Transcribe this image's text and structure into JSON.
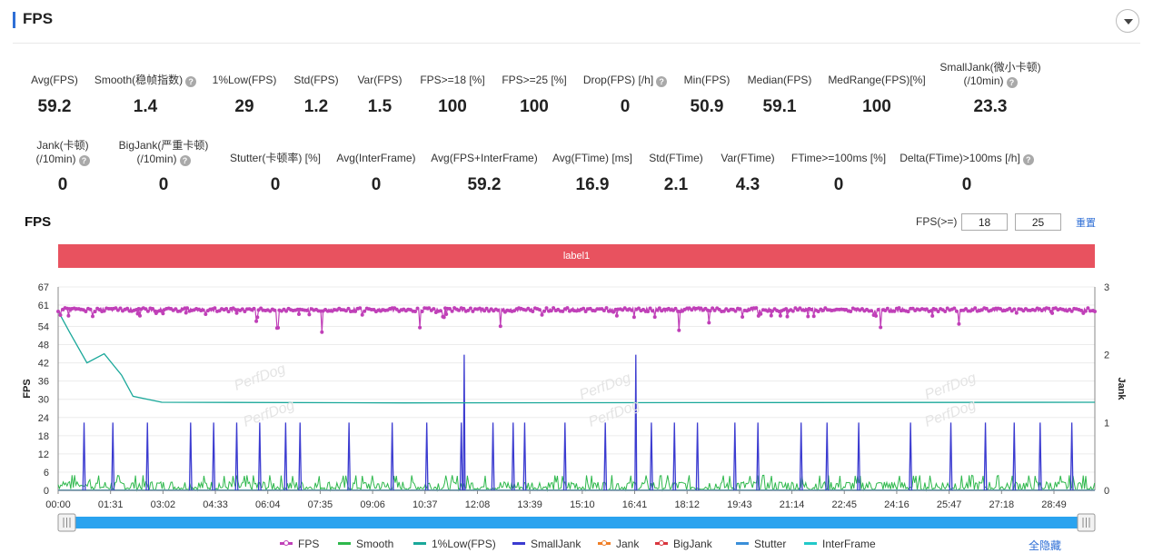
{
  "panel": {
    "title": "FPS"
  },
  "metrics_row1": [
    {
      "label": "Avg(FPS)",
      "value": "59.2",
      "help": false
    },
    {
      "label": "Smooth(稳帧指数)",
      "value": "1.4",
      "help": true
    },
    {
      "label": "1%Low(FPS)",
      "value": "29",
      "help": false
    },
    {
      "label": "Std(FPS)",
      "value": "1.2",
      "help": false
    },
    {
      "label": "Var(FPS)",
      "value": "1.5",
      "help": false
    },
    {
      "label": "FPS>=18 [%]",
      "value": "100",
      "help": false
    },
    {
      "label": "FPS>=25 [%]",
      "value": "100",
      "help": false
    },
    {
      "label": "Drop(FPS) [/h]",
      "value": "0",
      "help": true
    },
    {
      "label": "Min(FPS)",
      "value": "50.9",
      "help": false
    },
    {
      "label": "Median(FPS)",
      "value": "59.1",
      "help": false
    },
    {
      "label": "MedRange(FPS)[%]",
      "value": "100",
      "help": false
    },
    {
      "label": "SmallJank(微小卡顿)",
      "label2": "(/10min)",
      "value": "23.3",
      "help": true
    }
  ],
  "metrics_row2": [
    {
      "label": "Jank(卡顿)",
      "label2": "(/10min)",
      "value": "0",
      "help": true
    },
    {
      "label": "BigJank(严重卡顿)",
      "label2": "(/10min)",
      "value": "0",
      "help": true
    },
    {
      "label": "Stutter(卡顿率) [%]",
      "value": "0",
      "help": false
    },
    {
      "label": "Avg(InterFrame)",
      "value": "0",
      "help": false
    },
    {
      "label": "Avg(FPS+InterFrame)",
      "value": "59.2",
      "help": false
    },
    {
      "label": "Avg(FTime) [ms]",
      "value": "16.9",
      "help": false
    },
    {
      "label": "Std(FTime)",
      "value": "2.1",
      "help": false
    },
    {
      "label": "Var(FTime)",
      "value": "4.3",
      "help": false
    },
    {
      "label": "FTime>=100ms [%]",
      "value": "0",
      "help": false
    },
    {
      "label": "Delta(FTime)>100ms [/h]",
      "value": "0",
      "help": true
    }
  ],
  "chart_controls": {
    "title": "FPS",
    "threshold_label": "FPS(>=)",
    "threshold_1": "18",
    "threshold_2": "25",
    "reset_label": "重置",
    "segment_label": "label1",
    "hide_all_label": "全隐藏"
  },
  "watermark": "PerfDog",
  "colors": {
    "accent": "#2f6fd6",
    "label_bar": "#e8525f",
    "fps": "#c040b8",
    "smooth": "#2eb84c",
    "low1": "#1aa89a",
    "smalljank": "#3b3bd0",
    "jank": "#f07e26",
    "bigjank": "#d9363e",
    "stutter": "#3a8fd9",
    "interframe": "#22c8c8",
    "slider": "#2aa3ef"
  },
  "chart_data": {
    "type": "line",
    "title": "",
    "ylabel": "FPS",
    "y2label": "Jank",
    "ylim": [
      0,
      67
    ],
    "y2lim": [
      0,
      3
    ],
    "yticks": [
      0,
      6,
      12,
      18,
      24,
      30,
      36,
      42,
      48,
      54,
      61,
      67
    ],
    "y2ticks": [
      0,
      1,
      2,
      3
    ],
    "xticks": [
      "00:00",
      "01:31",
      "03:02",
      "04:33",
      "06:04",
      "07:35",
      "09:06",
      "10:37",
      "12:08",
      "13:39",
      "15:10",
      "16:41",
      "18:12",
      "19:43",
      "21:14",
      "22:45",
      "24:16",
      "25:47",
      "27:18",
      "28:49"
    ],
    "x_range_seconds": [
      0,
      1800
    ],
    "legend": [
      "FPS",
      "Smooth",
      "1%Low(FPS)",
      "SmallJank",
      "Jank",
      "BigJank",
      "Stutter",
      "InterFrame"
    ],
    "legend_position": "bottom",
    "series": [
      {
        "name": "FPS",
        "axis": "left",
        "baseline": 59.5,
        "dips_to": [
          51,
          57
        ]
      },
      {
        "name": "Smooth",
        "axis": "left",
        "baseline": 1.5,
        "range": [
          0,
          5
        ]
      },
      {
        "name": "1%Low(FPS)",
        "axis": "left",
        "points": [
          [
            0,
            59
          ],
          [
            20,
            52
          ],
          [
            50,
            42
          ],
          [
            80,
            45
          ],
          [
            110,
            38
          ],
          [
            130,
            31
          ],
          [
            180,
            29
          ],
          [
            600,
            28.8
          ],
          [
            1800,
            29
          ]
        ]
      },
      {
        "name": "SmallJank",
        "axis": "right",
        "events_seconds": [
          45,
          95,
          155,
          230,
          270,
          310,
          350,
          395,
          420,
          505,
          580,
          640,
          700,
          755,
          790,
          810,
          880,
          950,
          1030,
          1070,
          1110,
          1175,
          1215,
          1290,
          1335,
          1390,
          1480,
          1550,
          1610,
          1660,
          1705,
          1760
        ],
        "double_events_seconds": [
          705,
          1003
        ]
      },
      {
        "name": "Jank",
        "axis": "right",
        "values": 0
      },
      {
        "name": "BigJank",
        "axis": "right",
        "values": 0
      },
      {
        "name": "Stutter",
        "axis": "right",
        "values": 0
      },
      {
        "name": "InterFrame",
        "axis": "left",
        "values": 0
      }
    ]
  }
}
